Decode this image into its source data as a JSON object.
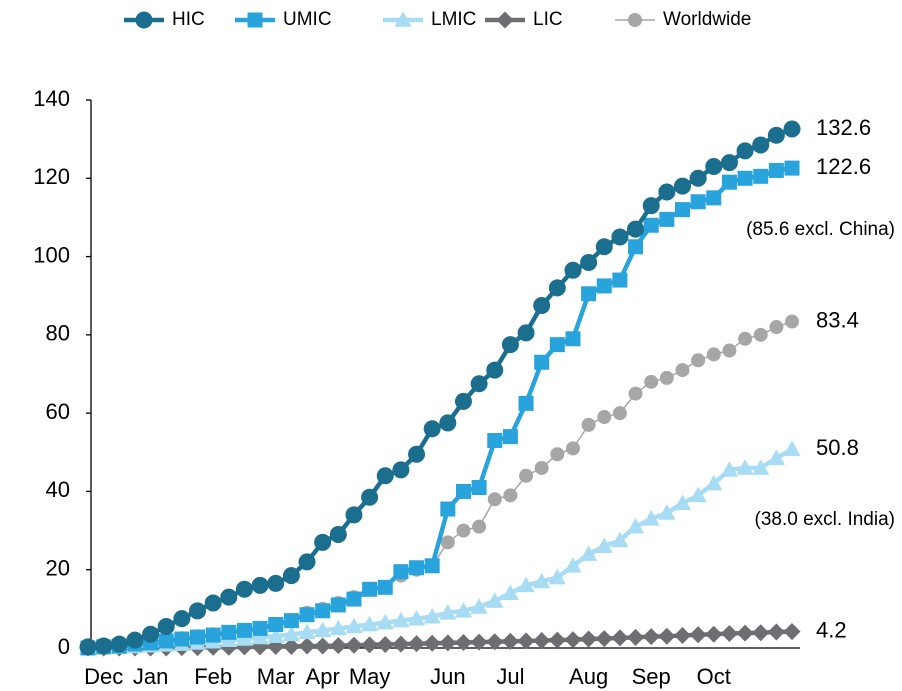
{
  "chart_data": {
    "type": "line",
    "categories": [
      null,
      "Dec",
      null,
      null,
      "Jan",
      null,
      null,
      null,
      "Feb",
      null,
      null,
      null,
      "Mar",
      null,
      null,
      "Apr",
      null,
      null,
      "May",
      null,
      null,
      null,
      null,
      "Jun",
      null,
      null,
      null,
      "Jul",
      null,
      null,
      null,
      null,
      "Aug",
      null,
      null,
      null,
      "Sep",
      null,
      null,
      null,
      "Oct",
      null,
      null,
      null,
      null,
      null
    ],
    "series": [
      {
        "name": "HIC",
        "color": "#1b6e8e",
        "marker": "circle",
        "values": [
          0.3,
          0.5,
          1,
          2,
          3.5,
          5.5,
          7.5,
          9.5,
          11.5,
          13,
          15,
          16,
          16.5,
          18.5,
          22,
          27,
          29,
          34,
          38.5,
          44,
          45.5,
          49.5,
          56,
          57.5,
          63,
          67.5,
          71,
          77.5,
          80.5,
          87.5,
          92,
          96.5,
          98.5,
          102.5,
          105,
          107,
          113,
          116.5,
          118,
          120,
          123,
          124,
          127,
          128.5,
          131,
          132.6
        ]
      },
      {
        "name": "UMIC",
        "color": "#29a3dc",
        "marker": "square",
        "values": [
          0,
          0.3,
          0.5,
          1,
          1.3,
          1.8,
          2.3,
          2.8,
          3.3,
          4,
          4.5,
          5,
          6,
          7,
          8.5,
          9.5,
          11,
          12.5,
          15,
          15.5,
          19.5,
          20.5,
          21,
          35.5,
          40,
          41,
          53,
          54,
          62.5,
          73,
          77.5,
          79,
          90.5,
          92.5,
          94,
          102.5,
          108,
          109.5,
          112,
          114,
          115,
          119,
          120,
          120.5,
          122,
          122.6
        ]
      },
      {
        "name": "LMIC",
        "color": "#a7dcf4",
        "marker": "triangle",
        "values": [
          0,
          0.1,
          0.2,
          0.4,
          0.6,
          0.8,
          1,
          1.3,
          1.6,
          2,
          2.3,
          2.7,
          3,
          3.5,
          4,
          4.5,
          5,
          5.5,
          6,
          6.5,
          7,
          7.5,
          8,
          9,
          9.5,
          10.5,
          12,
          14,
          16,
          17,
          18,
          21,
          24,
          26,
          27.5,
          31,
          33,
          34.5,
          37,
          39,
          42,
          45.5,
          46,
          46,
          48.5,
          50.8
        ]
      },
      {
        "name": "LIC",
        "color": "#6d6e71",
        "marker": "diamond",
        "values": [
          0,
          0,
          0,
          0,
          0,
          0,
          0.1,
          0.1,
          0.2,
          0.2,
          0.3,
          0.3,
          0.4,
          0.4,
          0.5,
          0.5,
          0.6,
          0.7,
          0.8,
          0.9,
          1,
          1.1,
          1.2,
          1.3,
          1.4,
          1.5,
          1.6,
          1.7,
          1.8,
          1.9,
          2,
          2.1,
          2.3,
          2.4,
          2.6,
          2.7,
          2.9,
          3,
          3.2,
          3.4,
          3.5,
          3.7,
          3.8,
          3.9,
          4.1,
          4.2
        ]
      },
      {
        "name": "Worldwide",
        "color": "#a6a6a6",
        "marker": "circle",
        "thin": true,
        "values": [
          0.2,
          0.5,
          0.8,
          1.2,
          1.6,
          2,
          2.5,
          3,
          3.5,
          4,
          4.5,
          5,
          6,
          7,
          9,
          10,
          11.5,
          13,
          15,
          15.5,
          18.5,
          20,
          21,
          27,
          30,
          31,
          38,
          39,
          44,
          46,
          49.5,
          51,
          57,
          59,
          60,
          65,
          68,
          69,
          71,
          73.5,
          75,
          76,
          79,
          80,
          82,
          83.4
        ]
      }
    ],
    "annotations": [
      "(85.6 excl. China)",
      "(38.0 excl. India)"
    ],
    "ylim": [
      0,
      140
    ],
    "yticks": [
      0,
      20,
      40,
      60,
      80,
      100,
      120,
      140
    ],
    "grid": false,
    "legend": "top"
  }
}
